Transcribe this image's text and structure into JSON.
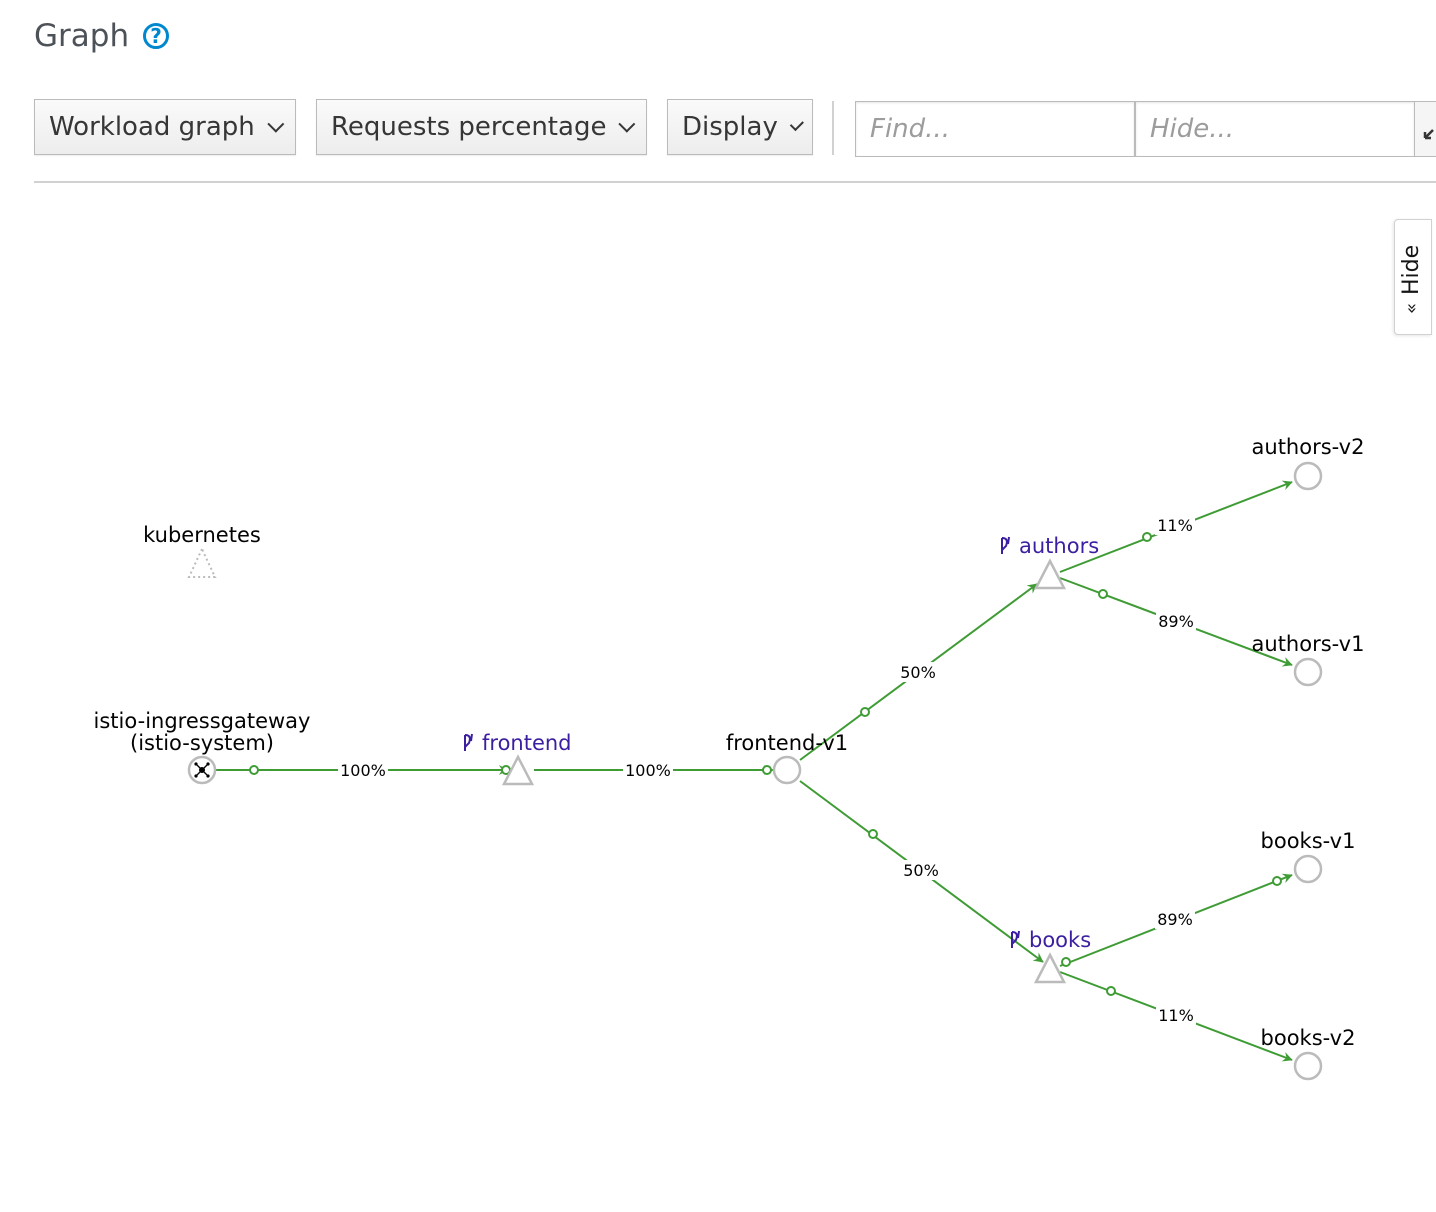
{
  "header": {
    "title": "Graph",
    "help_icon": "help-circle-icon"
  },
  "toolbar": {
    "graph_type": "Workload graph",
    "edge_labels": "Requests percentage",
    "display": "Display",
    "find_placeholder": "Find...",
    "hide_placeholder": "Hide..."
  },
  "side_panel": {
    "toggle_label": "Hide"
  },
  "colors": {
    "edge": "#3f9c35",
    "service_label": "#3c1fa0",
    "node_stroke": "#bbbbbb",
    "accent": "#0088ce"
  },
  "graph": {
    "nodes": {
      "kubernetes": {
        "label": "kubernetes"
      },
      "ingress": {
        "label_line1": "istio-ingressgateway",
        "label_line2": "(istio-system)"
      },
      "frontend_svc": {
        "label": "frontend"
      },
      "frontend_v1": {
        "label": "frontend-v1"
      },
      "authors_svc": {
        "label": "authors"
      },
      "books_svc": {
        "label": "books"
      },
      "authors_v2": {
        "label": "authors-v2"
      },
      "authors_v1": {
        "label": "authors-v1"
      },
      "books_v1": {
        "label": "books-v1"
      },
      "books_v2": {
        "label": "books-v2"
      }
    },
    "edges": {
      "ingress_frontend": "100%",
      "frontend_frontendv1": "100%",
      "frontendv1_authors": "50%",
      "frontendv1_books": "50%",
      "authors_v2": "11%",
      "authors_v1": "89%",
      "books_v1": "89%",
      "books_v2": "11%"
    }
  }
}
